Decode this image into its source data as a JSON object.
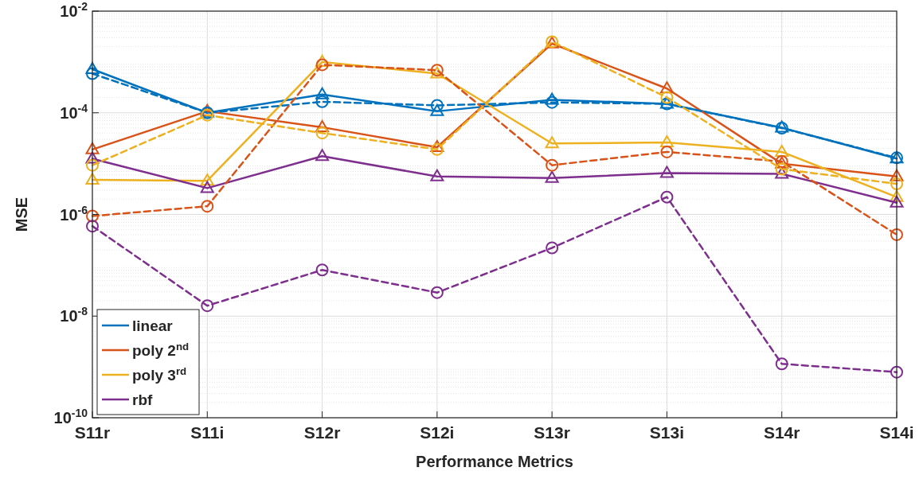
{
  "chart_data": {
    "type": "line",
    "xlabel": "Performance Metrics",
    "ylabel": "MSE",
    "categories": [
      "S11r",
      "S11i",
      "S12r",
      "S12i",
      "S13r",
      "S13i",
      "S14r",
      "S14i"
    ],
    "log": true,
    "ylim": [
      1e-10,
      0.01
    ],
    "yticks": [
      {
        "value": 1e-10,
        "label": "10$^{-10}$"
      },
      {
        "value": 1e-08,
        "label": "10$^{-8}$"
      },
      {
        "value": 1e-06,
        "label": "10$^{-6}$"
      },
      {
        "value": 0.0001,
        "label": "10$^{-4}$"
      },
      {
        "value": 0.01,
        "label": "10$^{-2}$"
      }
    ],
    "grid": true,
    "legend": "bottom left",
    "series": [
      {
        "name": "linear",
        "color": "#0072bd",
        "line_style": "solid",
        "marker": "triangle",
        "values": [
          0.00072,
          0.0001,
          0.00023,
          0.000107,
          0.00018,
          0.00015,
          5.1e-05,
          1.26e-05
        ]
      },
      {
        "name": "poly 2$^{nd}$",
        "color": "#d95319",
        "line_style": "solid",
        "marker": "triangle",
        "values": [
          1.9e-05,
          0.000107,
          5.2e-05,
          2.1e-05,
          0.0023,
          0.0003,
          1e-05,
          5.6e-06
        ]
      },
      {
        "name": "poly 3$^{rd}$",
        "color": "#edb120",
        "line_style": "solid",
        "marker": "triangle",
        "values": [
          4.8e-06,
          4.6e-06,
          0.001,
          0.00059,
          2.5e-05,
          2.6e-05,
          1.7e-05,
          2.2e-06
        ]
      },
      {
        "name": "rbf",
        "color": "#7e2f8e",
        "line_style": "solid",
        "marker": "triangle",
        "values": [
          1.25e-05,
          3.3e-06,
          1.4e-05,
          5.6e-06,
          5.2e-06,
          6.5e-06,
          6.3e-06,
          1.7e-06
        ]
      },
      {
        "color": "#0072bd",
        "line_style": "dashed",
        "marker": "circle",
        "values": [
          0.00059,
          0.0001,
          0.000165,
          0.00014,
          0.00016,
          0.00015,
          5e-05,
          1.3e-05
        ]
      },
      {
        "color": "#d95319",
        "line_style": "dashed",
        "marker": "circle",
        "values": [
          9.3e-07,
          1.45e-06,
          0.00088,
          0.00069,
          9.3e-06,
          1.7e-05,
          1.1e-05,
          4e-07
        ]
      },
      {
        "color": "#edb120",
        "line_style": "dashed",
        "marker": "circle",
        "values": [
          9.3e-06,
          9e-05,
          4e-05,
          1.9e-05,
          0.0025,
          0.0002,
          7.8e-06,
          4e-06
        ]
      },
      {
        "color": "#7e2f8e",
        "line_style": "dashed",
        "marker": "circle",
        "values": [
          5.9e-07,
          1.6e-08,
          8.1e-08,
          2.9e-08,
          2.2e-07,
          2.2e-06,
          1.15e-09,
          7.9e-10
        ]
      }
    ]
  }
}
